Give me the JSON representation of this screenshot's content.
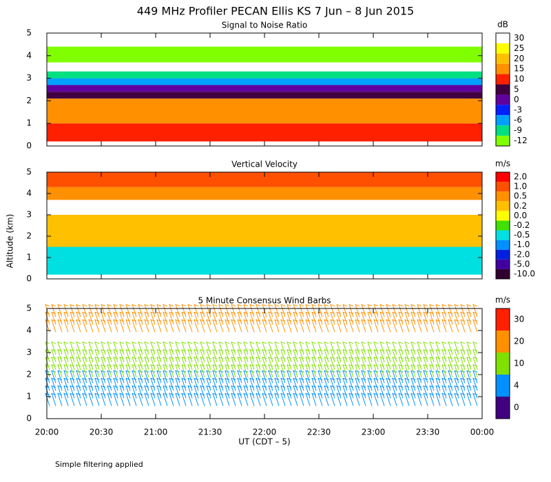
{
  "title": "449 MHz Profiler PECAN Ellis KS  7 Jun –  8 Jun 2015",
  "y_axis_label": "Altitude (km)",
  "x_axis_label": "UT  (CDT – 5)",
  "note": "Simple filtering applied",
  "chart_data": [
    {
      "type": "contour",
      "title": "Signal to Noise Ratio",
      "xlim": [
        0,
        240
      ],
      "ylim": [
        0,
        5
      ],
      "yticks": [
        0,
        1,
        2,
        3,
        4,
        5
      ],
      "colorbar": {
        "unit": "dB",
        "levels": [
          30,
          25,
          20,
          15,
          10,
          5,
          0,
          -3,
          -6,
          -9,
          -12
        ],
        "colors": [
          "#ffffff",
          "#ffff00",
          "#ffc000",
          "#ff9000",
          "#ff2000",
          "#400040",
          "#6000a0",
          "#0020ff",
          "#00a0ff",
          "#00e080",
          "#80ff00"
        ]
      },
      "layers": [
        {
          "bottom": 0.2,
          "top": 1.0,
          "value": 10
        },
        {
          "bottom": 1.0,
          "top": 2.1,
          "value": 15
        },
        {
          "bottom": 2.1,
          "top": 2.4,
          "value": 5
        },
        {
          "bottom": 2.4,
          "top": 2.7,
          "value": 0
        },
        {
          "bottom": 2.7,
          "top": 3.0,
          "value": -6
        },
        {
          "bottom": 3.0,
          "top": 3.3,
          "value": -9
        },
        {
          "bottom": 3.7,
          "top": 4.4,
          "value": -12
        }
      ]
    },
    {
      "type": "contour",
      "title": "Vertical Velocity",
      "xlim": [
        0,
        240
      ],
      "ylim": [
        0,
        5
      ],
      "yticks": [
        0,
        1,
        2,
        3,
        4,
        5
      ],
      "colorbar": {
        "unit": "m/s",
        "levels": [
          {
            "value": 2,
            "label": "2.0"
          },
          {
            "value": 1,
            "label": "1.0"
          },
          0.5,
          0.2,
          {
            "value": 0,
            "label": "0.0"
          },
          -0.2,
          -0.5,
          {
            "value": -1,
            "label": "-1.0"
          },
          {
            "value": -2,
            "label": "-2.0"
          },
          {
            "value": -5,
            "label": "-5.0"
          },
          {
            "value": -10,
            "label": "-10.0"
          }
        ],
        "colors": [
          "#ff0000",
          "#ff5000",
          "#ff9000",
          "#ffc000",
          "#ffff00",
          "#40e000",
          "#00e0e0",
          "#0090ff",
          "#0020e0",
          "#4000a0",
          "#300030"
        ]
      },
      "layers": [
        {
          "bottom": 0.2,
          "top": 1.5,
          "value": -0.5
        },
        {
          "bottom": 1.5,
          "top": 3.0,
          "value": 0.2
        },
        {
          "bottom": 3.7,
          "top": 4.3,
          "value": 0.5
        },
        {
          "bottom": 4.3,
          "top": 5.0,
          "value": 1
        }
      ]
    },
    {
      "type": "barbs",
      "title": "5 Minute Consensus Wind Barbs",
      "xlim": [
        0,
        240
      ],
      "ylim": [
        0,
        5
      ],
      "yticks": [
        0,
        1,
        2,
        3,
        4,
        5
      ],
      "xticks": [
        {
          "value": 0,
          "label": "20:00"
        },
        {
          "value": 30,
          "label": "20:30"
        },
        {
          "value": 60,
          "label": "21:00"
        },
        {
          "value": 90,
          "label": "21:30"
        },
        {
          "value": 120,
          "label": "22:00"
        },
        {
          "value": 150,
          "label": "22:30"
        },
        {
          "value": 180,
          "label": "23:00"
        },
        {
          "value": 210,
          "label": "23:30"
        },
        {
          "value": 240,
          "label": "00:00"
        }
      ],
      "colorbar": {
        "unit": "m/s",
        "levels": [
          30,
          20,
          10,
          4,
          0
        ],
        "colors": [
          "#ff2000",
          "#ff9000",
          "#80e000",
          "#0090ff",
          "#400080"
        ]
      },
      "layers": [
        {
          "bottom": 0.3,
          "top": 1.8,
          "value": 4
        },
        {
          "bottom": 1.8,
          "top": 3.1,
          "value": 10
        },
        {
          "bottom": 3.6,
          "top": 4.8,
          "value": 20
        }
      ]
    }
  ]
}
